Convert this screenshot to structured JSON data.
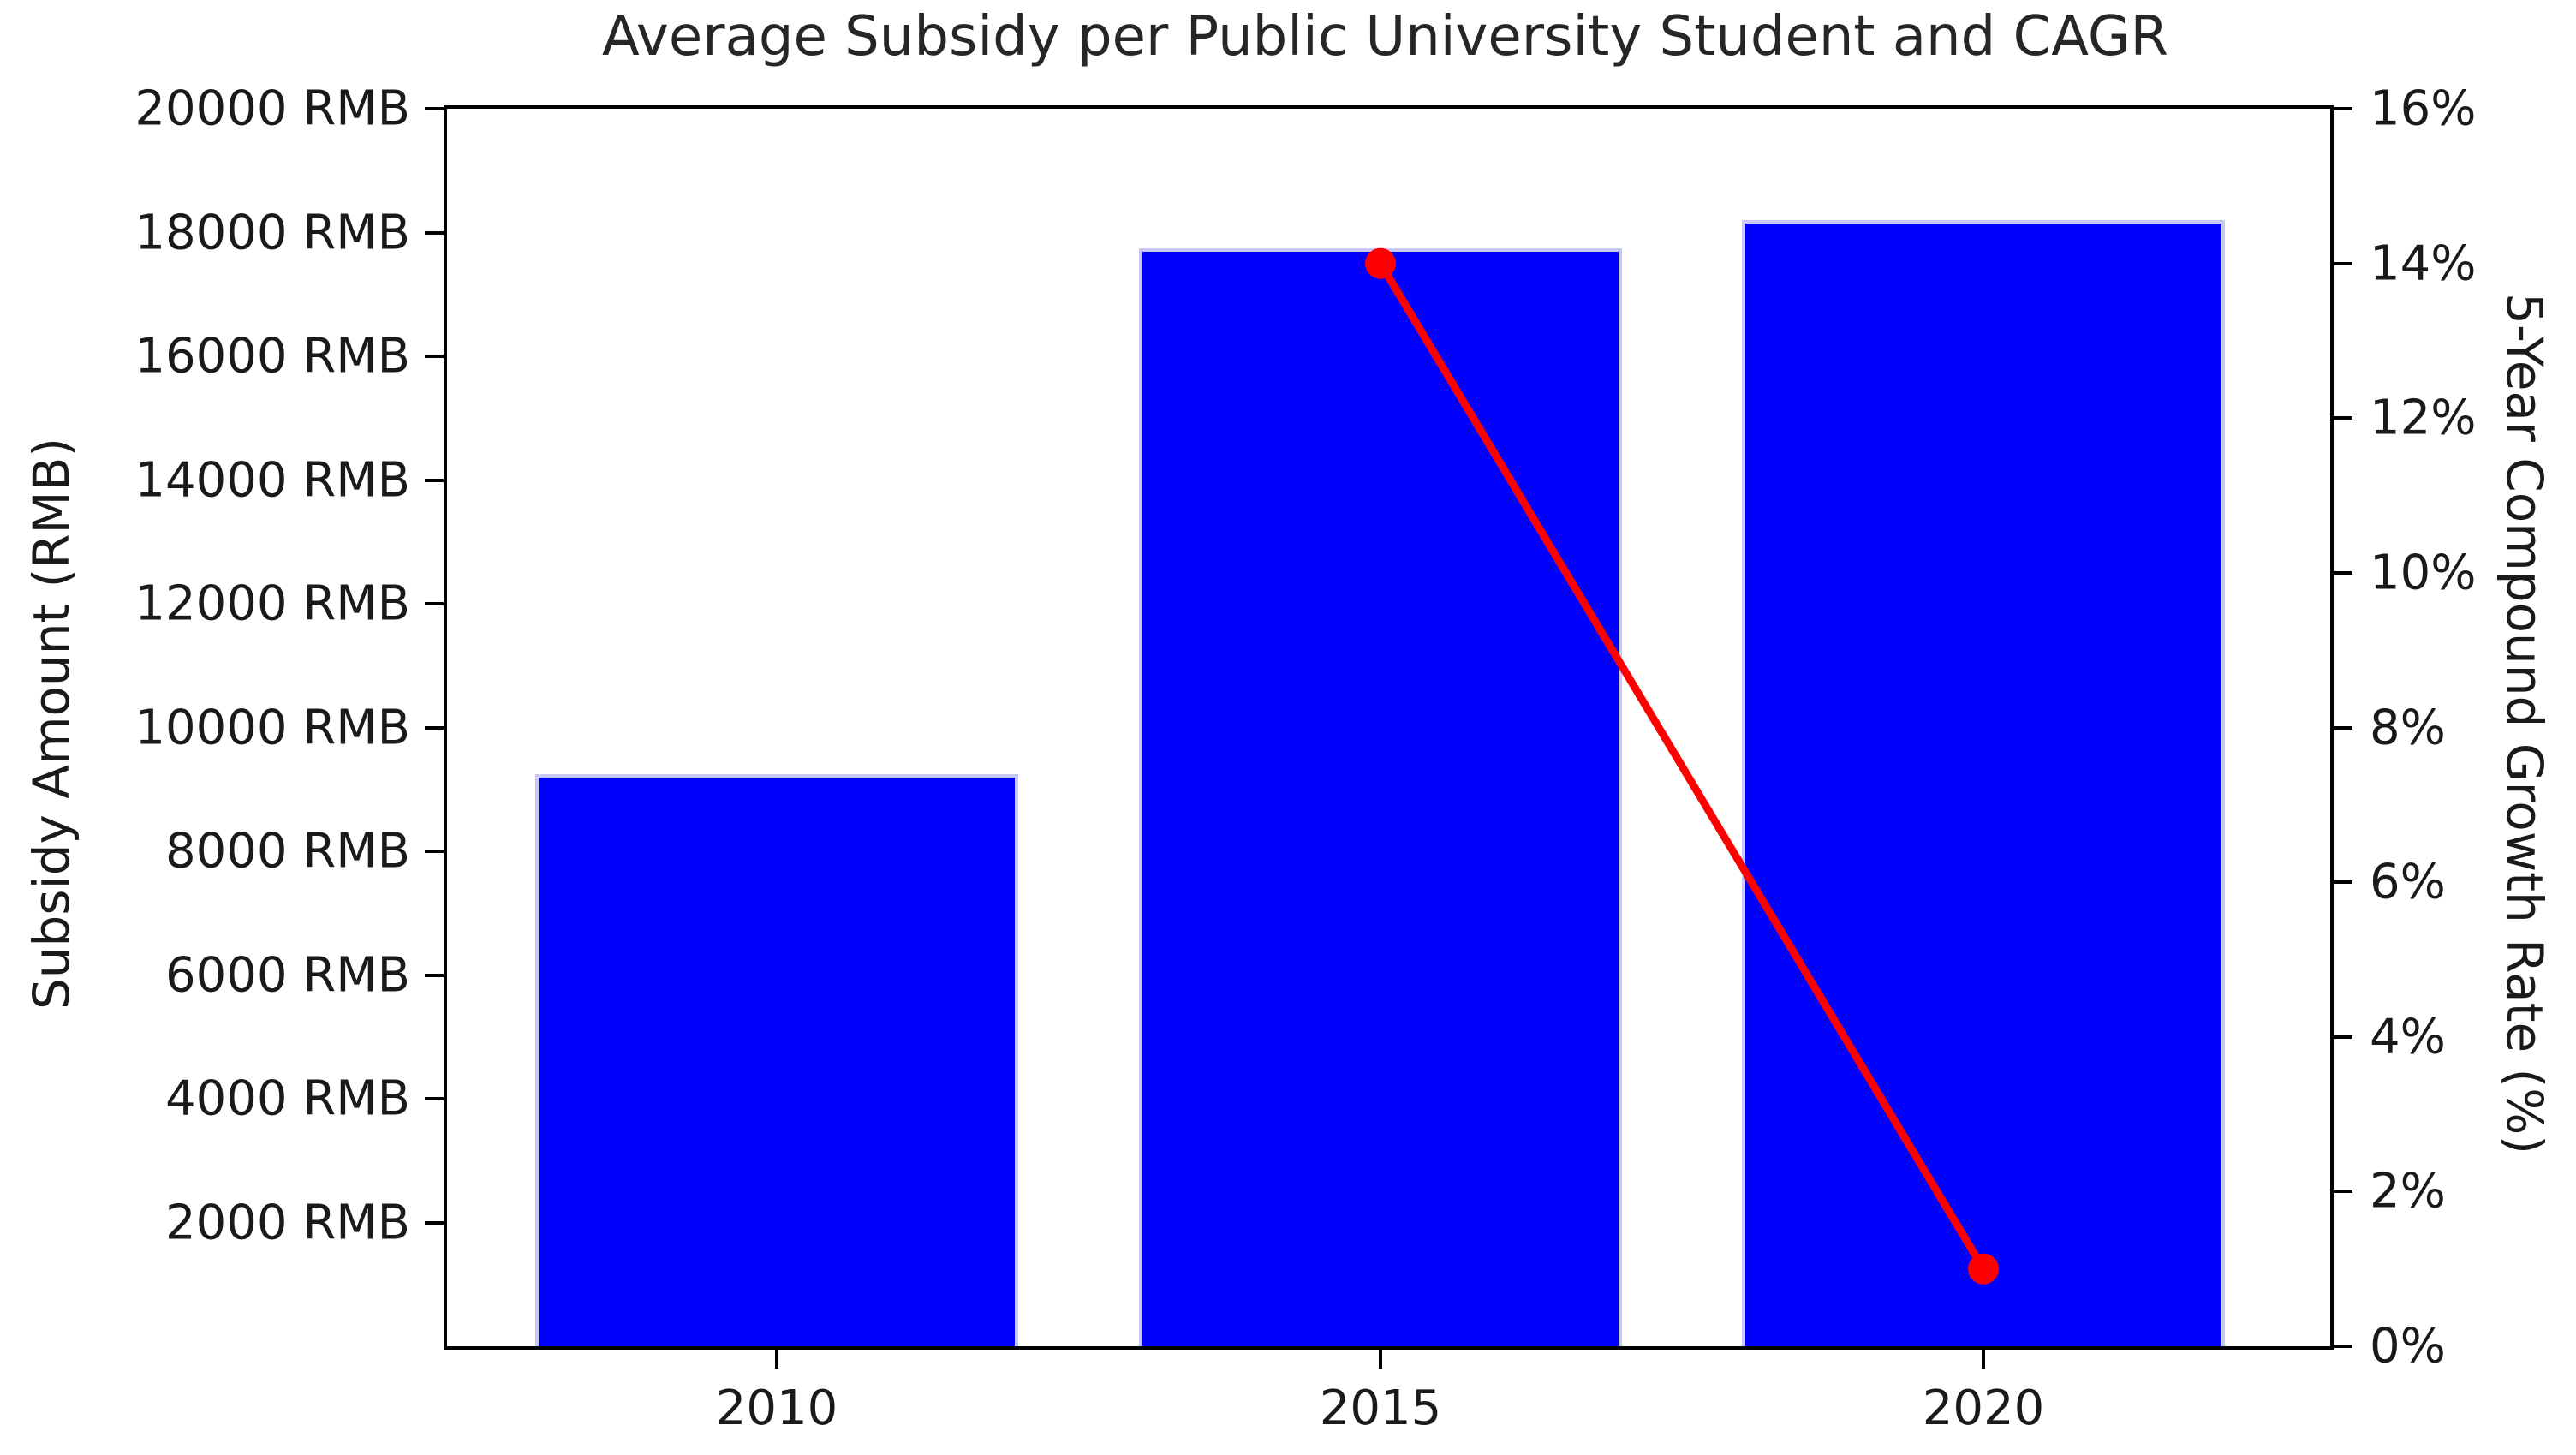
{
  "title": "Average Subsidy per Public University Student and CAGR",
  "chart_data": {
    "type": "bar",
    "title": "Average Subsidy per Public University Student and CAGR",
    "categories": [
      "2010",
      "2015",
      "2020"
    ],
    "series": [
      {
        "name": "Subsidy Amount",
        "type": "bar",
        "axis": "left",
        "values": [
          9250,
          17750,
          18200
        ],
        "unit": "RMB",
        "color": "#0000ff",
        "edge_color": "#c8c8f2"
      },
      {
        "name": "5-Year Compound Growth Rate",
        "type": "line",
        "axis": "right",
        "x": [
          "2015",
          "2020"
        ],
        "values": [
          14,
          1
        ],
        "unit": "%",
        "color": "#ff0000",
        "marker": "circle"
      }
    ],
    "left_axis": {
      "label": "Subsidy Amount (RMB)",
      "min": 0,
      "max": 20000,
      "tick_step": 2000,
      "tick_labels": [
        "2000 RMB",
        "4000 RMB",
        "6000 RMB",
        "8000 RMB",
        "10000 RMB",
        "12000 RMB",
        "14000 RMB",
        "16000 RMB",
        "18000 RMB",
        "20000 RMB"
      ],
      "tick_values": [
        2000,
        4000,
        6000,
        8000,
        10000,
        12000,
        14000,
        16000,
        18000,
        20000
      ]
    },
    "right_axis": {
      "label": "5-Year Compound Growth Rate (%)",
      "min": 0,
      "max": 16,
      "tick_step": 2,
      "tick_labels": [
        "0%",
        "2%",
        "4%",
        "6%",
        "8%",
        "10%",
        "12%",
        "14%",
        "16%"
      ],
      "tick_values": [
        0,
        2,
        4,
        6,
        8,
        10,
        12,
        14,
        16
      ]
    },
    "x_axis": {
      "tick_labels": [
        "2010",
        "2015",
        "2020"
      ]
    },
    "layout_hints": {
      "grid": false,
      "legend": false,
      "bar_color": "#0000ff",
      "line_color": "#ff0000",
      "background": "#ffffff"
    }
  }
}
